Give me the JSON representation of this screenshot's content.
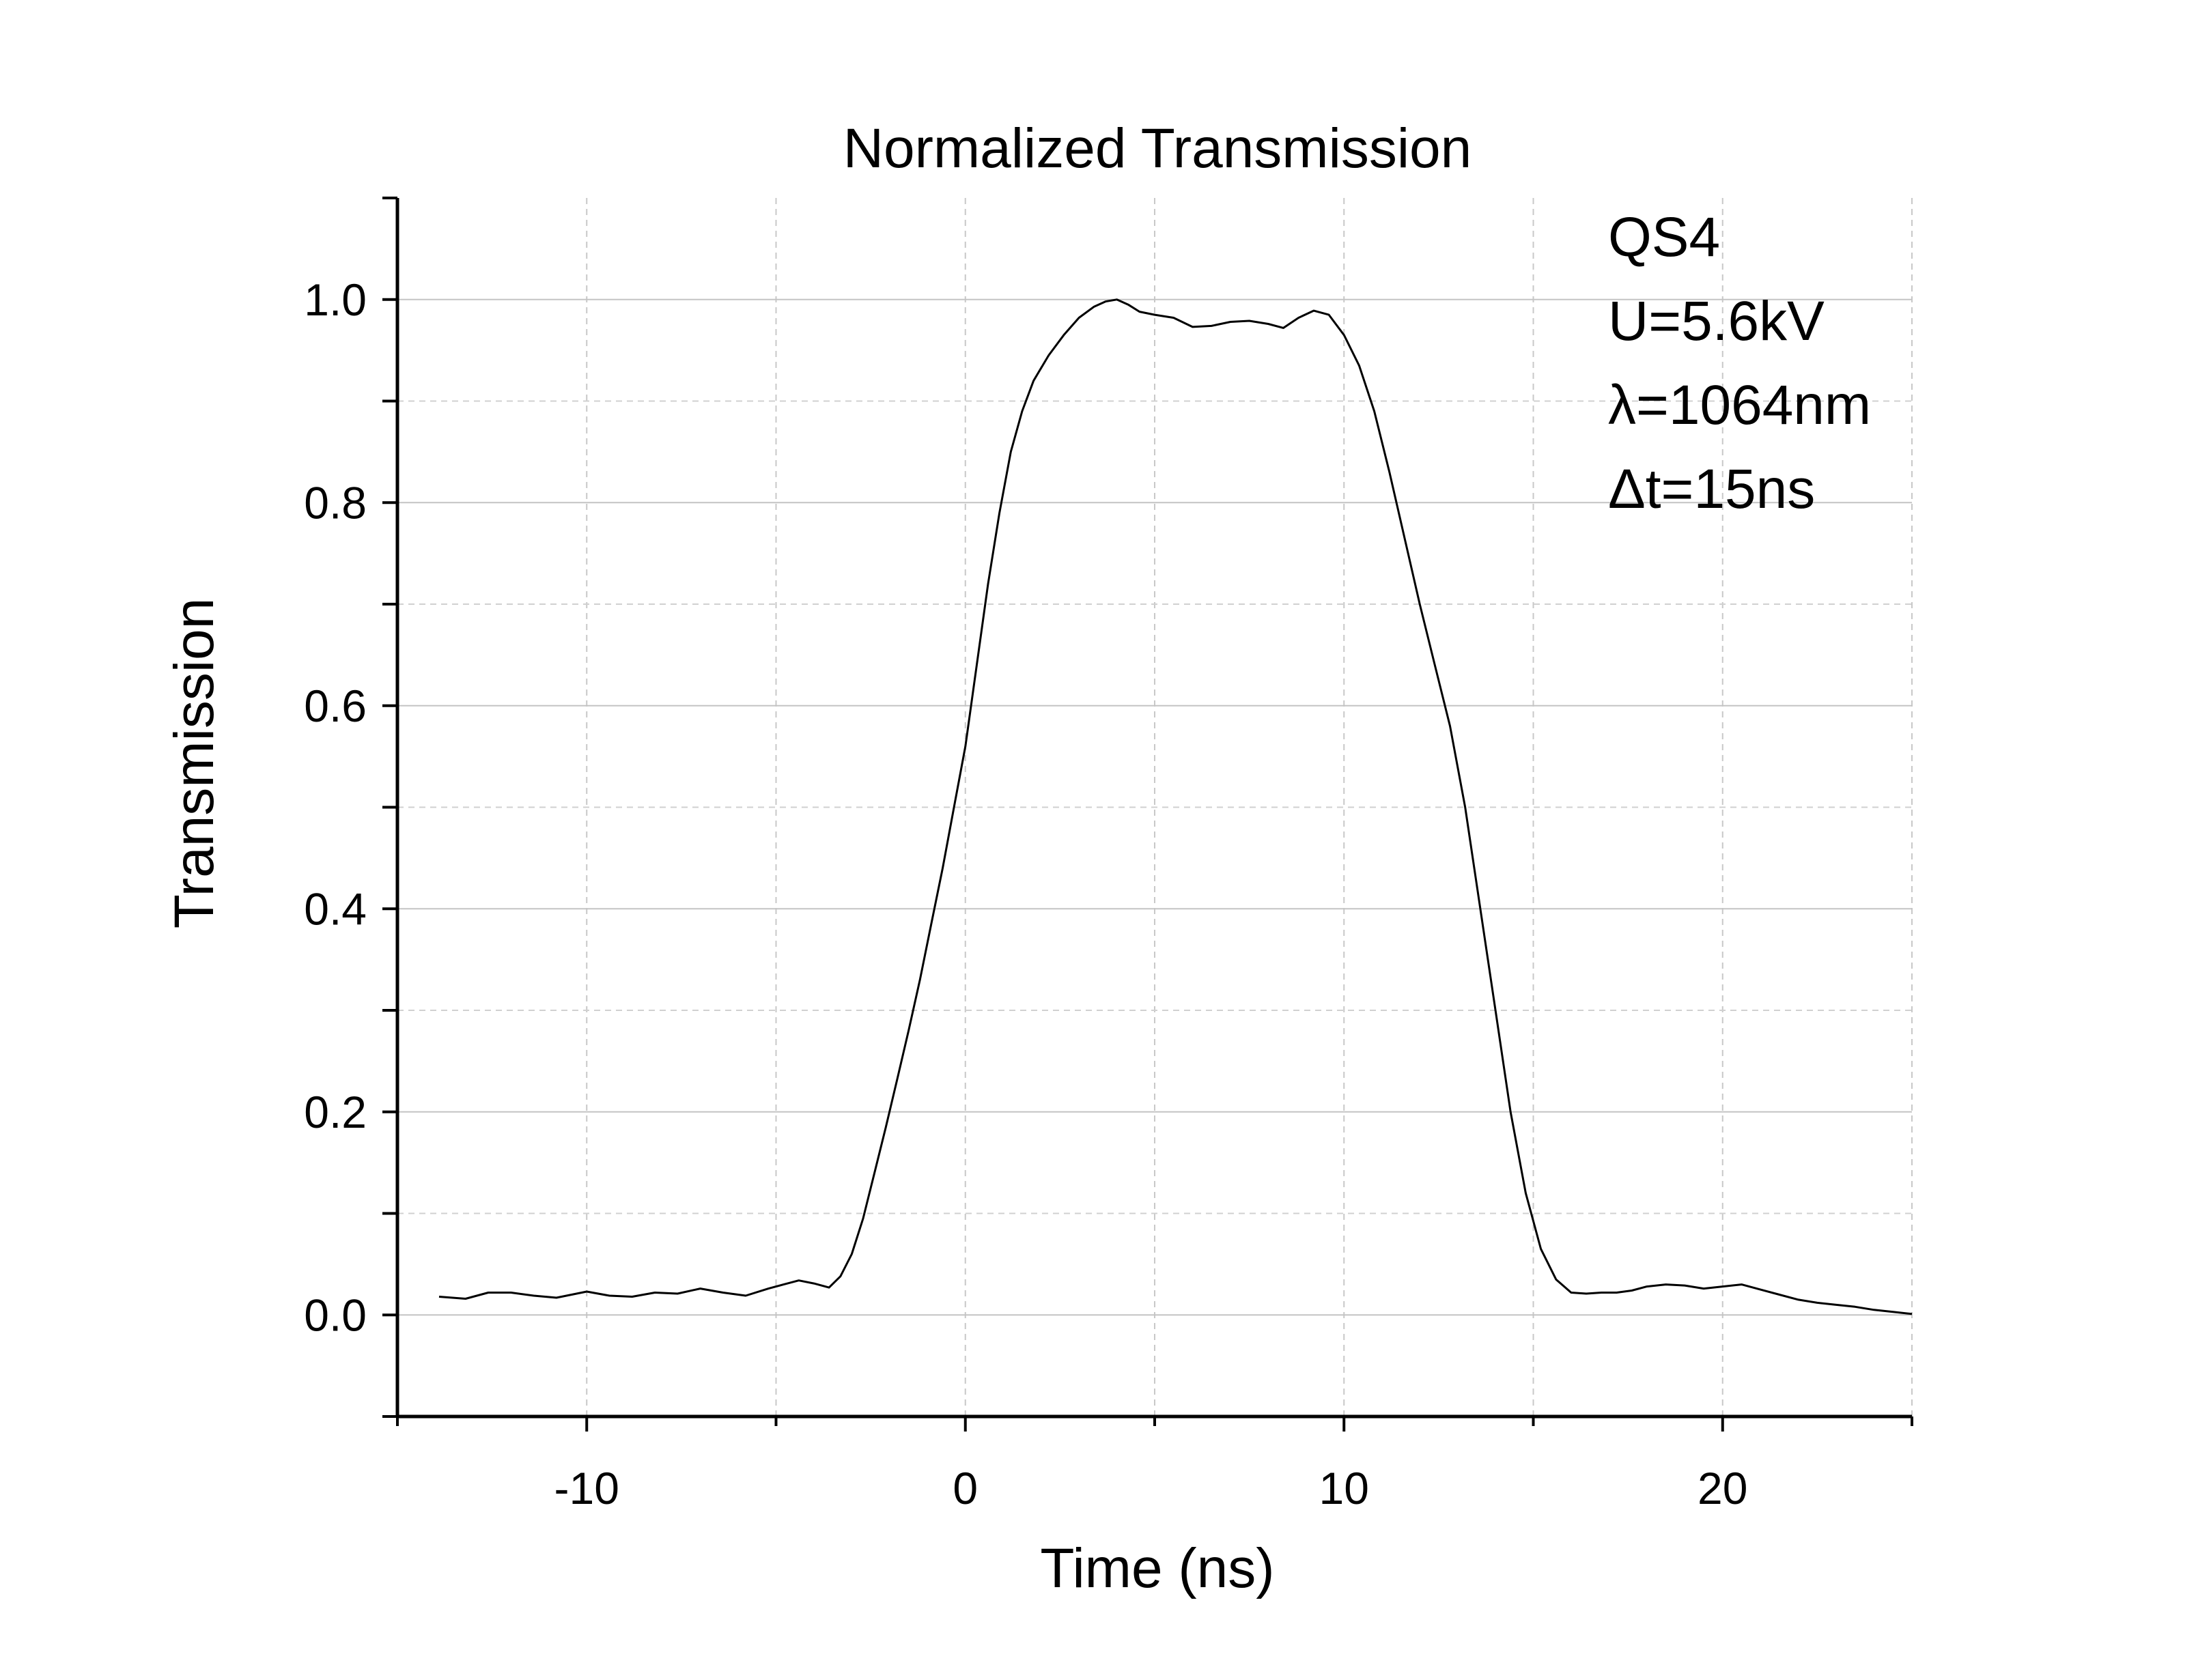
{
  "chart_data": {
    "type": "line",
    "title": "Normalized Transmission",
    "xlabel": "Time (ns)",
    "ylabel": "Transmission",
    "xlim": [
      -15,
      25
    ],
    "ylim": [
      -0.1,
      1.1
    ],
    "x_ticks": [
      "-10",
      "0",
      "10",
      "20"
    ],
    "x_tick_values": [
      -10,
      0,
      10,
      20
    ],
    "y_ticks": [
      "0.0",
      "0.2",
      "0.4",
      "0.6",
      "0.8",
      "1.0"
    ],
    "y_tick_values": [
      0.0,
      0.2,
      0.4,
      0.6,
      0.8,
      1.0
    ],
    "grid": true,
    "annotations": [
      "QS4",
      "U=5.6kV",
      "λ=1064nm",
      "Δt=15ns"
    ],
    "series": [
      {
        "color": "#000000",
        "x": [
          -13.9,
          -13.2,
          -12.6,
          -12.0,
          -11.4,
          -10.8,
          -10.0,
          -9.4,
          -8.8,
          -8.2,
          -7.6,
          -7.0,
          -6.4,
          -5.8,
          -5.2,
          -4.8,
          -4.4,
          -4.0,
          -3.6,
          -3.3,
          -3.0,
          -2.7,
          -2.4,
          -2.1,
          -1.8,
          -1.5,
          -1.2,
          -0.9,
          -0.6,
          -0.3,
          0.0,
          0.3,
          0.6,
          0.9,
          1.2,
          1.5,
          1.8,
          2.2,
          2.6,
          3.0,
          3.4,
          3.7,
          4.0,
          4.3,
          4.6,
          5.0,
          5.5,
          6.0,
          6.5,
          7.0,
          7.5,
          8.0,
          8.4,
          8.8,
          9.2,
          9.6,
          10.0,
          10.4,
          10.8,
          11.2,
          11.6,
          12.0,
          12.4,
          12.8,
          13.2,
          13.6,
          14.0,
          14.4,
          14.8,
          15.2,
          15.6,
          16.0,
          16.4,
          16.8,
          17.2,
          17.6,
          18.0,
          18.5,
          19.0,
          19.5,
          20.0,
          20.5,
          21.0,
          21.5,
          22.0,
          22.5,
          23.0,
          23.5,
          24.0,
          24.5,
          25.0
        ],
        "y": [
          0.018,
          0.016,
          0.022,
          0.022,
          0.019,
          0.017,
          0.023,
          0.019,
          0.018,
          0.022,
          0.021,
          0.026,
          0.022,
          0.019,
          0.026,
          0.03,
          0.034,
          0.031,
          0.027,
          0.038,
          0.06,
          0.095,
          0.14,
          0.185,
          0.232,
          0.28,
          0.33,
          0.385,
          0.44,
          0.5,
          0.56,
          0.64,
          0.72,
          0.79,
          0.85,
          0.89,
          0.92,
          0.945,
          0.965,
          0.982,
          0.993,
          0.998,
          1.0,
          0.995,
          0.988,
          0.985,
          0.982,
          0.973,
          0.974,
          0.978,
          0.979,
          0.976,
          0.972,
          0.982,
          0.989,
          0.985,
          0.965,
          0.935,
          0.89,
          0.83,
          0.765,
          0.7,
          0.64,
          0.58,
          0.5,
          0.4,
          0.3,
          0.2,
          0.12,
          0.065,
          0.035,
          0.022,
          0.021,
          0.022,
          0.022,
          0.024,
          0.028,
          0.03,
          0.029,
          0.026,
          0.028,
          0.03,
          0.025,
          0.02,
          0.015,
          0.012,
          0.01,
          0.008,
          0.005,
          0.003,
          0.001
        ]
      }
    ]
  }
}
